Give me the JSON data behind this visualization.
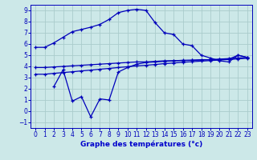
{
  "background_color": "#cce8e8",
  "grid_color": "#aacccc",
  "line_color": "#0000bb",
  "xlabel": "Graphe des températures (°c)",
  "xlabel_color": "#0000cc",
  "ylim": [
    -1.5,
    9.5
  ],
  "xlim": [
    -0.5,
    23.5
  ],
  "yticks": [
    -1,
    0,
    1,
    2,
    3,
    4,
    5,
    6,
    7,
    8,
    9
  ],
  "xticks": [
    0,
    1,
    2,
    3,
    4,
    5,
    6,
    7,
    8,
    9,
    10,
    11,
    12,
    13,
    14,
    15,
    16,
    17,
    18,
    19,
    20,
    21,
    22,
    23
  ],
  "line1_x": [
    0,
    1,
    2,
    3,
    4,
    5,
    6,
    7,
    8,
    9,
    10,
    11,
    12,
    13,
    14,
    15,
    16,
    17,
    18,
    19,
    20,
    21,
    22,
    23
  ],
  "line1_y": [
    5.7,
    5.7,
    6.1,
    6.6,
    7.1,
    7.3,
    7.5,
    7.75,
    8.2,
    8.8,
    9.0,
    9.1,
    9.0,
    7.9,
    7.0,
    6.85,
    6.0,
    5.85,
    5.0,
    4.75,
    4.5,
    4.4,
    5.0,
    4.8
  ],
  "line2_x": [
    0,
    1,
    2,
    3,
    4,
    5,
    6,
    7,
    8,
    9,
    10,
    11,
    12,
    13,
    14,
    15,
    16,
    17,
    18,
    19,
    20,
    21,
    22,
    23
  ],
  "line2_y": [
    3.9,
    3.9,
    3.95,
    4.0,
    4.05,
    4.1,
    4.15,
    4.2,
    4.25,
    4.3,
    4.35,
    4.4,
    4.4,
    4.45,
    4.5,
    4.5,
    4.55,
    4.55,
    4.6,
    4.6,
    4.65,
    4.7,
    4.75,
    4.8
  ],
  "line3_x": [
    0,
    1,
    2,
    3,
    4,
    5,
    6,
    7,
    8,
    9,
    10,
    11,
    12,
    13,
    14,
    15,
    16,
    17,
    18,
    19,
    20,
    21,
    22,
    23
  ],
  "line3_y": [
    3.3,
    3.3,
    3.38,
    3.45,
    3.52,
    3.6,
    3.67,
    3.75,
    3.82,
    3.9,
    3.97,
    4.05,
    4.1,
    4.17,
    4.25,
    4.3,
    4.37,
    4.42,
    4.47,
    4.52,
    4.57,
    4.62,
    4.67,
    4.72
  ],
  "line4_x": [
    2,
    3,
    4,
    5,
    6,
    7,
    8,
    9,
    10,
    11,
    12,
    13,
    14,
    15,
    16,
    17,
    18,
    19,
    20,
    21,
    22,
    23
  ],
  "line4_y": [
    2.2,
    3.7,
    0.9,
    1.3,
    -0.5,
    1.1,
    1.0,
    3.5,
    3.9,
    4.2,
    4.35,
    4.4,
    4.45,
    4.5,
    4.52,
    4.55,
    4.57,
    4.6,
    4.62,
    4.65,
    5.0,
    4.8
  ]
}
